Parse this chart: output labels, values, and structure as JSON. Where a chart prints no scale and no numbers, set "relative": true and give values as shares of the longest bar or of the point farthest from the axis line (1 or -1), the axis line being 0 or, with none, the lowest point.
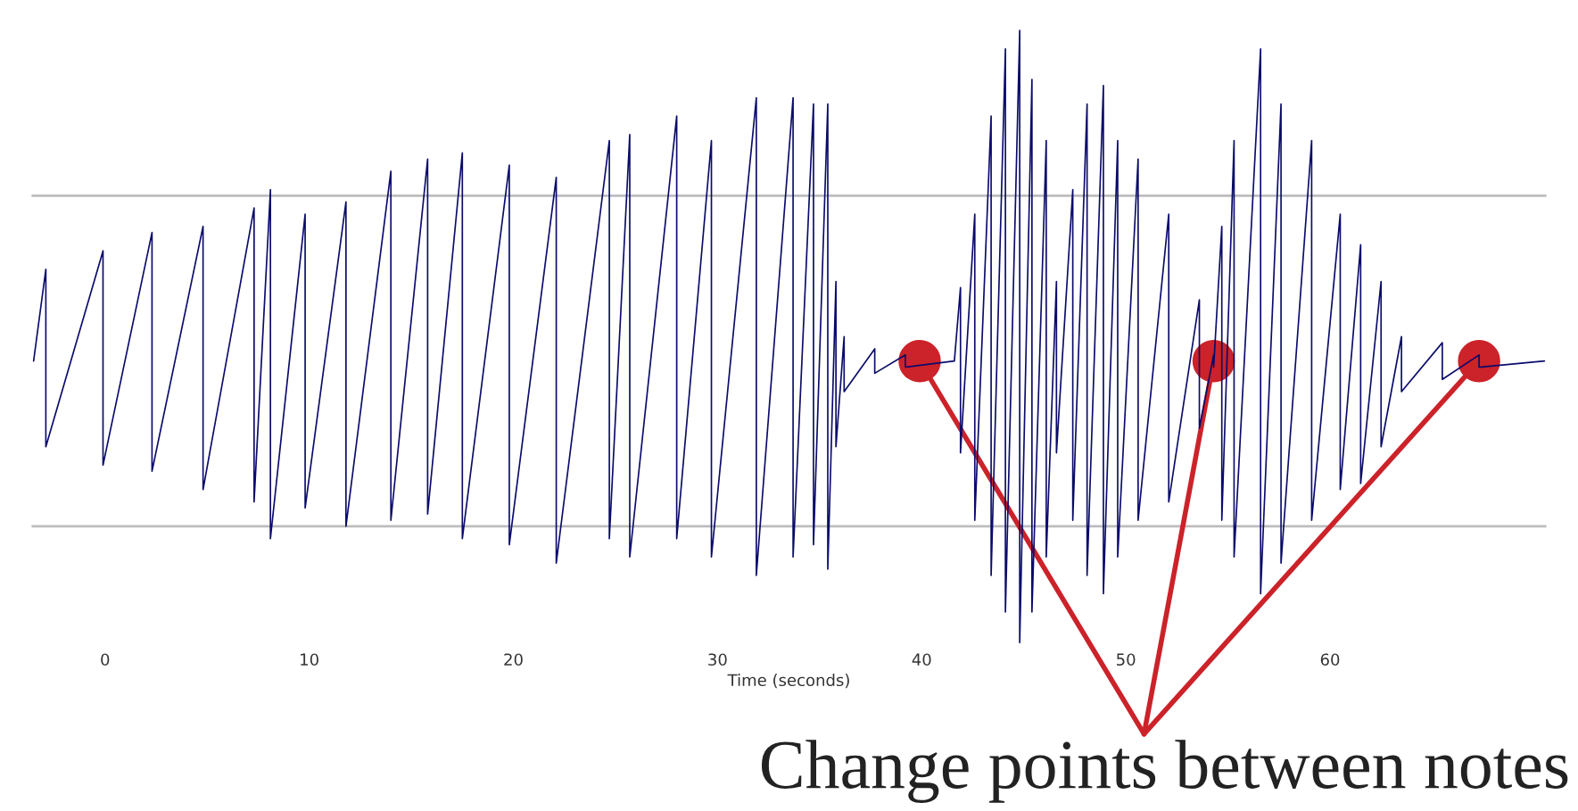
{
  "chart_data": {
    "type": "line",
    "relative": true,
    "xlabel": "Time (seconds)",
    "xlim": [
      -3.6,
      70.6
    ],
    "xticks": [
      0,
      10,
      20,
      30,
      40,
      50,
      60
    ],
    "grid": false,
    "legend": false,
    "series": [
      {
        "color": "#0b0b6b",
        "x": [
          -3.5,
          -2.9,
          -2.9,
          -0.1,
          -0.1,
          2.3,
          2.3,
          4.8,
          4.8,
          7.3,
          7.3,
          8.1,
          8.1,
          9.8,
          9.8,
          11.8,
          11.8,
          14.0,
          14.0,
          15.8,
          15.8,
          17.5,
          17.5,
          19.8,
          19.8,
          22.1,
          22.1,
          24.7,
          24.7,
          25.7,
          25.7,
          28.0,
          28.0,
          29.7,
          29.7,
          31.9,
          31.9,
          33.7,
          33.7,
          34.7,
          34.7,
          35.4,
          35.4,
          35.8,
          35.8,
          36.2,
          36.2,
          37.7,
          37.7,
          39.2,
          39.2,
          41.6,
          41.6,
          41.9,
          41.9,
          42.6,
          42.6,
          43.4,
          43.4,
          44.1,
          44.1,
          44.8,
          44.8,
          45.4,
          45.4,
          46.1,
          46.1,
          46.6,
          46.6,
          47.4,
          47.4,
          48.1,
          48.1,
          48.9,
          48.9,
          49.6,
          49.6,
          50.6,
          50.6,
          52.1,
          52.1,
          53.6,
          53.6,
          54.3,
          54.3,
          54.7,
          54.7,
          55.3,
          55.3,
          56.6,
          56.6,
          57.6,
          57.6,
          59.1,
          59.1,
          60.5,
          60.5,
          61.5,
          61.5,
          62.5,
          62.5,
          63.5,
          63.5,
          65.5,
          65.5,
          67.3,
          67.3,
          70.5
        ],
        "values": [
          0.46,
          0.61,
          0.32,
          0.64,
          0.29,
          0.67,
          0.28,
          0.68,
          0.25,
          0.71,
          0.23,
          0.74,
          0.17,
          0.7,
          0.22,
          0.72,
          0.19,
          0.77,
          0.2,
          0.79,
          0.21,
          0.8,
          0.17,
          0.78,
          0.16,
          0.76,
          0.13,
          0.82,
          0.17,
          0.83,
          0.14,
          0.86,
          0.17,
          0.82,
          0.14,
          0.89,
          0.11,
          0.89,
          0.14,
          0.88,
          0.16,
          0.88,
          0.12,
          0.59,
          0.32,
          0.5,
          0.41,
          0.48,
          0.44,
          0.47,
          0.45,
          0.46,
          0.46,
          0.58,
          0.31,
          0.7,
          0.2,
          0.86,
          0.11,
          0.97,
          0.05,
          1.0,
          0.0,
          0.92,
          0.05,
          0.82,
          0.14,
          0.59,
          0.31,
          0.74,
          0.2,
          0.88,
          0.11,
          0.91,
          0.08,
          0.82,
          0.14,
          0.79,
          0.2,
          0.7,
          0.23,
          0.56,
          0.35,
          0.47,
          0.45,
          0.68,
          0.2,
          0.82,
          0.14,
          0.97,
          0.08,
          0.88,
          0.13,
          0.82,
          0.2,
          0.7,
          0.25,
          0.65,
          0.26,
          0.59,
          0.32,
          0.5,
          0.41,
          0.49,
          0.43,
          0.47,
          0.45,
          0.46
        ]
      },
      {
        "type": "scatter",
        "color": "#cc2229",
        "marker": "circle",
        "x": [
          39.9,
          54.3,
          67.3
        ],
        "values": [
          0.46,
          0.46,
          0.46
        ]
      }
    ],
    "ref_lines": [
      {
        "axis": "y",
        "value": 0.73,
        "color": "#bdbdbd"
      },
      {
        "axis": "y",
        "value": 0.19,
        "color": "#bdbdbd"
      }
    ],
    "annotations": [
      "Change points between notes"
    ]
  }
}
